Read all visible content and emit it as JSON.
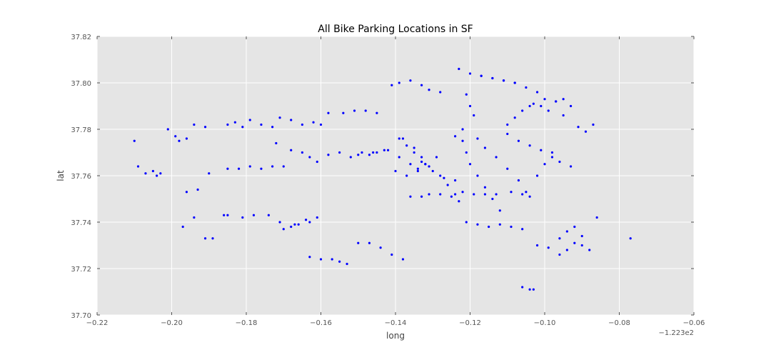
{
  "chart_data": {
    "type": "scatter",
    "title": "All Bike Parking Locations in SF",
    "xlabel": "long",
    "ylabel": "lat",
    "x_offset_label": "−1.223e2",
    "xlim": [
      -0.22,
      -0.06
    ],
    "ylim": [
      37.7,
      37.82
    ],
    "xticks": [
      -0.22,
      -0.2,
      -0.18,
      -0.16,
      -0.14,
      -0.12,
      -0.1,
      -0.08,
      -0.06
    ],
    "xtick_labels": [
      "−0.22",
      "−0.20",
      "−0.18",
      "−0.16",
      "−0.14",
      "−0.12",
      "−0.10",
      "−0.08",
      "−0.06"
    ],
    "yticks": [
      37.7,
      37.72,
      37.74,
      37.76,
      37.78,
      37.8,
      37.82
    ],
    "ytick_labels": [
      "37.70",
      "37.72",
      "37.74",
      "37.76",
      "37.78",
      "37.80",
      "37.82"
    ],
    "grid": true,
    "colors": {
      "background": "#e5e5e5",
      "point": "#0000ff",
      "grid": "#ffffff"
    },
    "x": [
      -0.21,
      -0.209,
      -0.207,
      -0.205,
      -0.204,
      -0.203,
      -0.198,
      -0.196,
      -0.194,
      -0.191,
      -0.185,
      -0.183,
      -0.181,
      -0.179,
      -0.176,
      -0.173,
      -0.171,
      -0.168,
      -0.165,
      -0.162,
      -0.16,
      -0.158,
      -0.154,
      -0.151,
      -0.148,
      -0.145,
      -0.141,
      -0.139,
      -0.136,
      -0.133,
      -0.131,
      -0.128,
      -0.124,
      -0.122,
      -0.121,
      -0.12,
      -0.118,
      -0.116,
      -0.114,
      -0.112,
      -0.11,
      -0.108,
      -0.106,
      -0.104,
      -0.103,
      -0.101,
      -0.099,
      -0.097,
      -0.095,
      -0.093,
      -0.091,
      -0.089,
      -0.087,
      -0.121,
      -0.12,
      -0.119,
      -0.122,
      -0.118,
      -0.116,
      -0.113,
      -0.11,
      -0.107,
      -0.105,
      -0.102,
      -0.1,
      -0.098,
      -0.138,
      -0.135,
      -0.133,
      -0.131,
      -0.128,
      -0.126,
      -0.124,
      -0.14,
      -0.137,
      -0.134,
      -0.132,
      -0.129,
      -0.172,
      -0.168,
      -0.165,
      -0.163,
      -0.161,
      -0.158,
      -0.155,
      -0.152,
      -0.149,
      -0.146,
      -0.143,
      -0.185,
      -0.182,
      -0.179,
      -0.176,
      -0.173,
      -0.17,
      -0.185,
      -0.181,
      -0.178,
      -0.174,
      -0.171,
      -0.167,
      -0.164,
      -0.15,
      -0.147,
      -0.145,
      -0.142,
      -0.139,
      -0.136,
      -0.134,
      -0.132,
      -0.119,
      -0.116,
      -0.113,
      -0.109,
      -0.106,
      -0.104,
      -0.121,
      -0.118,
      -0.115,
      -0.112,
      -0.109,
      -0.106,
      -0.102,
      -0.099,
      -0.096,
      -0.094,
      -0.092,
      -0.09,
      -0.088,
      -0.086,
      -0.163,
      -0.16,
      -0.157,
      -0.155,
      -0.153,
      -0.15,
      -0.147,
      -0.144,
      -0.141,
      -0.138,
      -0.17,
      -0.168,
      -0.166,
      -0.163,
      -0.161,
      -0.106,
      -0.104,
      -0.103,
      -0.096,
      -0.094,
      -0.092,
      -0.09,
      -0.077,
      -0.117,
      -0.114,
      -0.111,
      -0.108,
      -0.123,
      -0.12,
      -0.117,
      -0.114,
      -0.111,
      -0.108,
      -0.105,
      -0.102,
      -0.1,
      -0.097,
      -0.095,
      -0.11,
      -0.107,
      -0.104,
      -0.101,
      -0.098,
      -0.096,
      -0.093,
      -0.139,
      -0.137,
      -0.135,
      -0.133,
      -0.13,
      -0.127,
      -0.124,
      -0.122,
      -0.136,
      -0.133,
      -0.131,
      -0.128,
      -0.125,
      -0.123,
      -0.197,
      -0.194,
      -0.191,
      -0.189,
      -0.186,
      -0.201,
      -0.199,
      -0.196,
      -0.193,
      -0.19
    ],
    "y": [
      37.775,
      37.764,
      37.761,
      37.762,
      37.76,
      37.761,
      37.775,
      37.776,
      37.782,
      37.781,
      37.782,
      37.783,
      37.781,
      37.784,
      37.782,
      37.781,
      37.785,
      37.784,
      37.782,
      37.783,
      37.782,
      37.787,
      37.787,
      37.788,
      37.788,
      37.787,
      37.799,
      37.8,
      37.801,
      37.799,
      37.797,
      37.796,
      37.777,
      37.775,
      37.77,
      37.765,
      37.76,
      37.755,
      37.75,
      37.745,
      37.782,
      37.785,
      37.788,
      37.79,
      37.791,
      37.79,
      37.788,
      37.792,
      37.786,
      37.79,
      37.781,
      37.779,
      37.782,
      37.795,
      37.79,
      37.786,
      37.78,
      37.776,
      37.772,
      37.768,
      37.763,
      37.758,
      37.753,
      37.76,
      37.765,
      37.77,
      37.776,
      37.772,
      37.768,
      37.764,
      37.76,
      37.756,
      37.752,
      37.762,
      37.76,
      37.763,
      37.765,
      37.768,
      37.774,
      37.771,
      37.77,
      37.768,
      37.766,
      37.769,
      37.77,
      37.768,
      37.77,
      37.77,
      37.771,
      37.763,
      37.763,
      37.764,
      37.763,
      37.764,
      37.764,
      37.743,
      37.742,
      37.743,
      37.743,
      37.74,
      37.739,
      37.741,
      37.769,
      37.769,
      37.77,
      37.771,
      37.768,
      37.765,
      37.762,
      37.765,
      37.752,
      37.752,
      37.752,
      37.753,
      37.752,
      37.751,
      37.74,
      37.739,
      37.738,
      37.739,
      37.738,
      37.737,
      37.73,
      37.729,
      37.733,
      37.736,
      37.738,
      37.73,
      37.728,
      37.742,
      37.725,
      37.724,
      37.724,
      37.723,
      37.722,
      37.731,
      37.731,
      37.729,
      37.726,
      37.724,
      37.737,
      37.738,
      37.739,
      37.74,
      37.742,
      37.712,
      37.711,
      37.711,
      37.726,
      37.728,
      37.731,
      37.734,
      37.733,
      37.803,
      37.802,
      37.801,
      37.8,
      37.806,
      37.804,
      37.803,
      37.802,
      37.801,
      37.8,
      37.798,
      37.796,
      37.793,
      37.792,
      37.793,
      37.778,
      37.775,
      37.773,
      37.771,
      37.768,
      37.766,
      37.764,
      37.776,
      37.773,
      37.77,
      37.766,
      37.762,
      37.759,
      37.758,
      37.753,
      37.751,
      37.751,
      37.752,
      37.752,
      37.751,
      37.749,
      37.738,
      37.742,
      37.733,
      37.733,
      37.743,
      37.78,
      37.777,
      37.753,
      37.754,
      37.761
    ]
  }
}
